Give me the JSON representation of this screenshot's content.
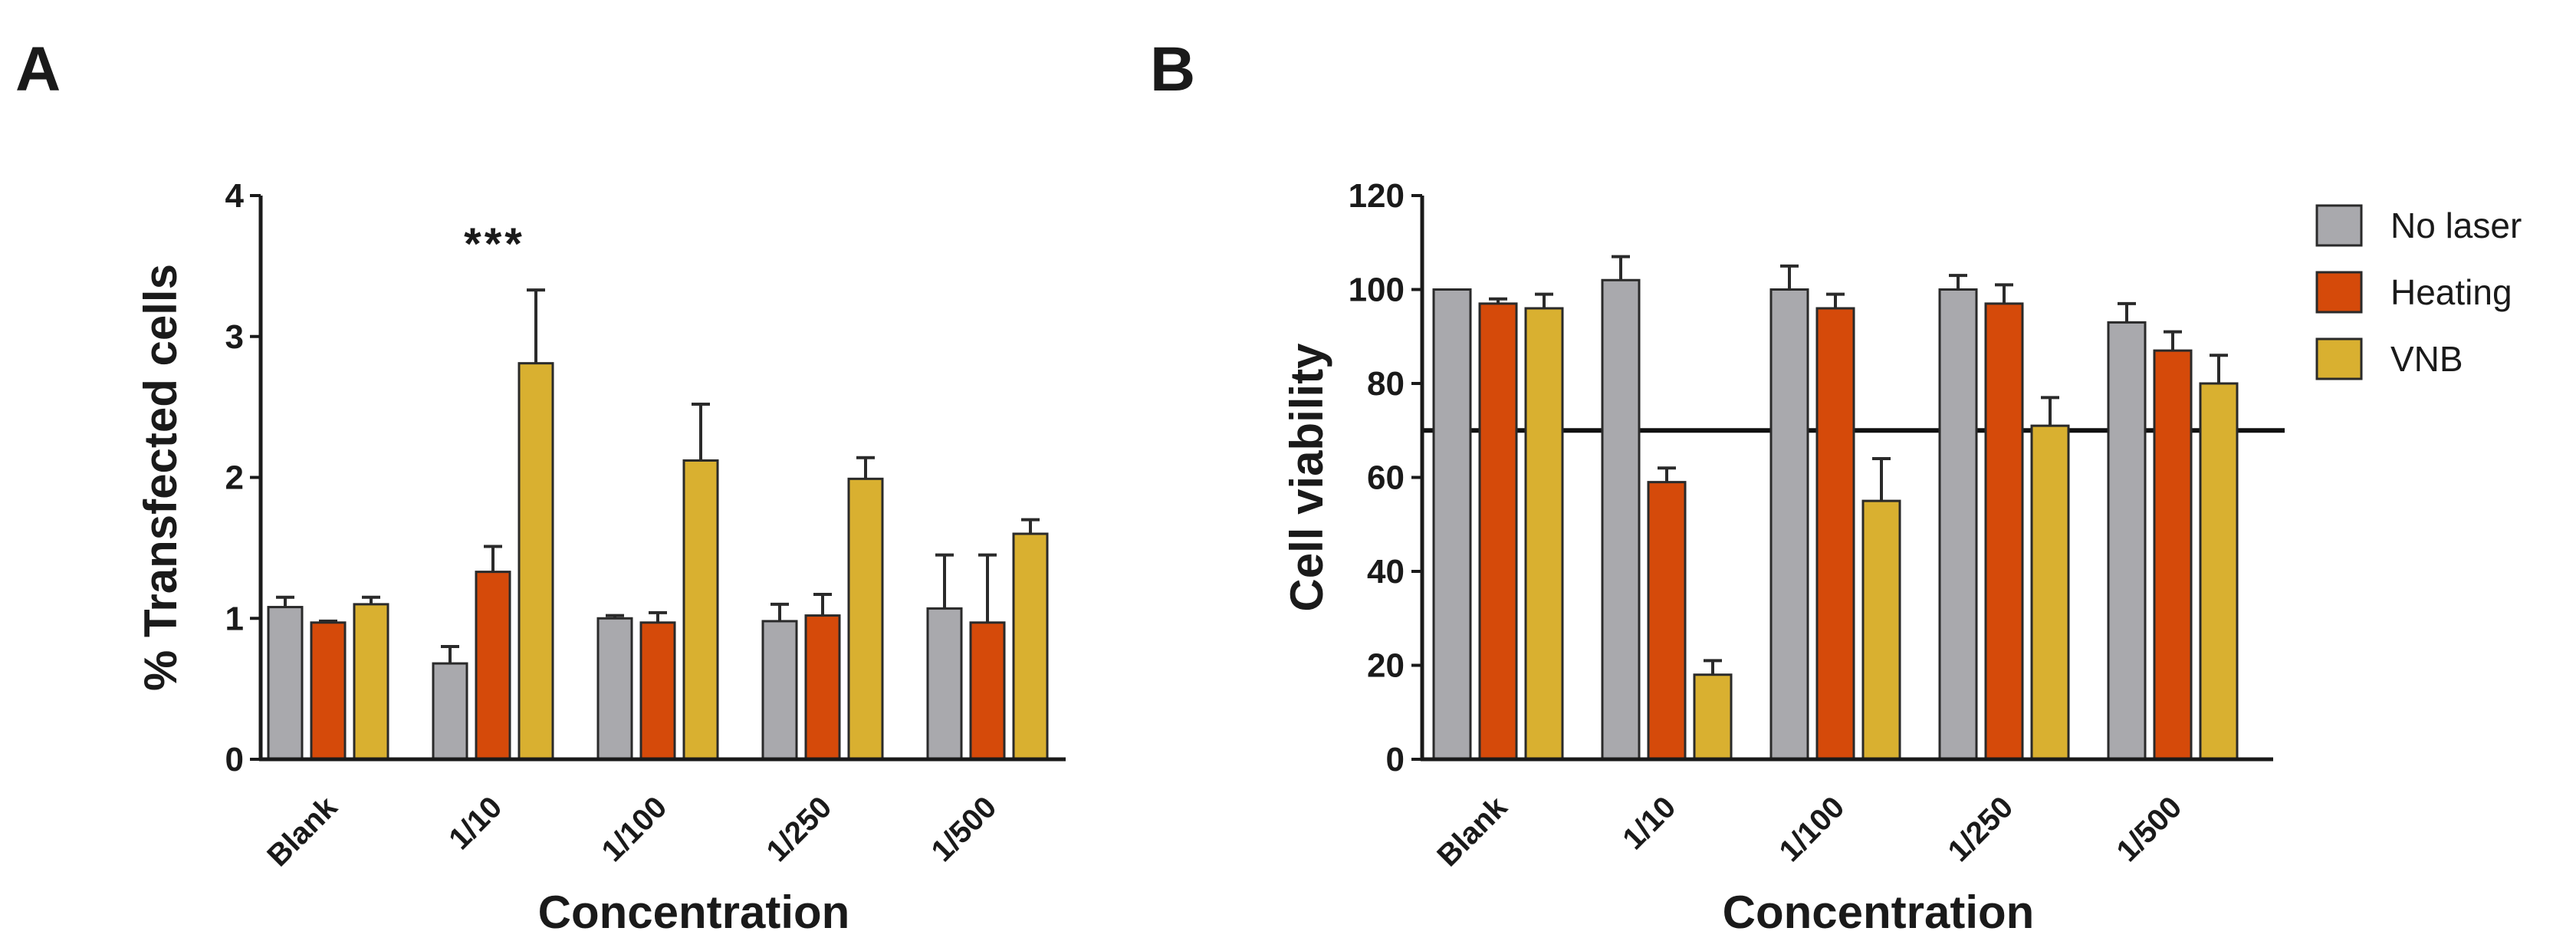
{
  "figure": {
    "panels": [
      "A",
      "B"
    ]
  },
  "colors": {
    "No laser": "#a9a9ad",
    "Heating": "#d54a0a",
    "VNB": "#d9b030",
    "axis": "#1a1a1a",
    "bar_edge": "#2a2a2a"
  },
  "legend": {
    "items": [
      "No laser",
      "Heating",
      "VNB"
    ]
  },
  "chart_data": [
    {
      "panel": "A",
      "type": "bar",
      "title": "",
      "xlabel": "Concentration",
      "ylabel": "% Transfected cells",
      "ylim": [
        0,
        4
      ],
      "yticks": [
        "0",
        "1",
        "2",
        "3",
        "4"
      ],
      "categories": [
        "Blank",
        "1/10",
        "1/100",
        "1/250",
        "1/500"
      ],
      "series": [
        {
          "name": "No laser",
          "values": [
            1.08,
            0.68,
            1.0,
            0.98,
            1.07
          ],
          "errors": [
            0.07,
            0.12,
            0.02,
            0.12,
            0.38
          ]
        },
        {
          "name": "Heating",
          "values": [
            0.97,
            1.33,
            0.97,
            1.02,
            0.97
          ],
          "errors": [
            0.01,
            0.18,
            0.07,
            0.15,
            0.48
          ]
        },
        {
          "name": "VNB",
          "values": [
            1.1,
            2.81,
            2.12,
            1.99,
            1.6
          ],
          "errors": [
            0.05,
            0.52,
            0.4,
            0.15,
            0.1
          ]
        }
      ],
      "annotations": [
        {
          "text": "***",
          "category": "1/10"
        }
      ]
    },
    {
      "panel": "B",
      "type": "bar",
      "title": "",
      "xlabel": "Concentration",
      "ylabel": "Cell viability",
      "ylim": [
        0,
        120
      ],
      "yticks": [
        "0",
        "20",
        "40",
        "60",
        "80",
        "100",
        "120"
      ],
      "categories": [
        "Blank",
        "1/10",
        "1/100",
        "1/250",
        "1/500"
      ],
      "series": [
        {
          "name": "No laser",
          "values": [
            100,
            102,
            100,
            100,
            93
          ],
          "errors": [
            0,
            5,
            5,
            3,
            4
          ]
        },
        {
          "name": "Heating",
          "values": [
            97,
            59,
            96,
            97,
            87
          ],
          "errors": [
            1,
            3,
            3,
            4,
            4
          ]
        },
        {
          "name": "VNB",
          "values": [
            96,
            18,
            55,
            71,
            80
          ],
          "errors": [
            3,
            3,
            9,
            6,
            6
          ]
        }
      ],
      "reference_line": 70,
      "legend_position": "top-right"
    }
  ]
}
